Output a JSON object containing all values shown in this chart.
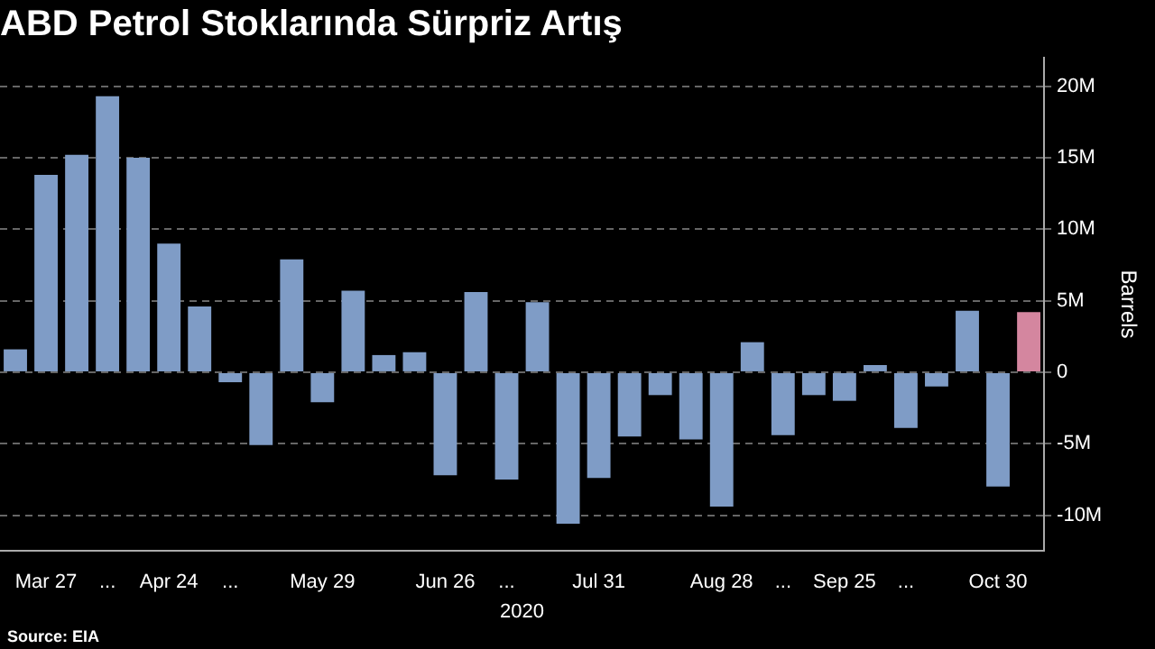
{
  "chart_data": {
    "type": "bar",
    "title": "ABD Petrol Stoklarında Sürpriz Artış",
    "xlabel": "2020",
    "ylabel": "Barrels",
    "annotations": [
      "Source: EIA"
    ],
    "categories": [
      null,
      "Mar 27",
      null,
      "...",
      null,
      "Apr 24",
      null,
      "...",
      null,
      null,
      "May 29",
      null,
      null,
      null,
      "Jun 26",
      null,
      "...",
      null,
      null,
      "Jul 31",
      null,
      null,
      null,
      "Aug 28",
      null,
      "...",
      null,
      "Sep 25",
      null,
      "...",
      null,
      null,
      "Oct 30",
      null
    ],
    "values": [
      1.6,
      13.8,
      15.2,
      19.3,
      15.0,
      9.0,
      4.6,
      -0.7,
      -5.1,
      7.9,
      -2.1,
      5.7,
      1.2,
      1.4,
      -7.2,
      5.6,
      -7.5,
      4.9,
      -10.6,
      -7.4,
      -4.5,
      -1.6,
      -4.7,
      -9.4,
      2.1,
      -4.4,
      -1.6,
      -2.0,
      0.5,
      -3.9,
      -1.0,
      4.3,
      -8.0,
      4.2
    ],
    "colors": [
      "#7f9cc6",
      "#7f9cc6",
      "#7f9cc6",
      "#7f9cc6",
      "#7f9cc6",
      "#7f9cc6",
      "#7f9cc6",
      "#7f9cc6",
      "#7f9cc6",
      "#7f9cc6",
      "#7f9cc6",
      "#7f9cc6",
      "#7f9cc6",
      "#7f9cc6",
      "#7f9cc6",
      "#7f9cc6",
      "#7f9cc6",
      "#7f9cc6",
      "#7f9cc6",
      "#7f9cc6",
      "#7f9cc6",
      "#7f9cc6",
      "#7f9cc6",
      "#7f9cc6",
      "#7f9cc6",
      "#7f9cc6",
      "#7f9cc6",
      "#7f9cc6",
      "#7f9cc6",
      "#7f9cc6",
      "#7f9cc6",
      "#7f9cc6",
      "#7f9cc6",
      "#d4869f"
    ],
    "ylim": [
      -12.5,
      22
    ],
    "yticks": [
      {
        "value": -10,
        "label": "-10M"
      },
      {
        "value": -5,
        "label": "-5M"
      },
      0,
      {
        "value": 5,
        "label": "5M"
      },
      {
        "value": 10,
        "label": "10M"
      },
      {
        "value": 15,
        "label": "15M"
      },
      {
        "value": 20,
        "label": "20M"
      }
    ],
    "grid": "y",
    "legend": false
  }
}
